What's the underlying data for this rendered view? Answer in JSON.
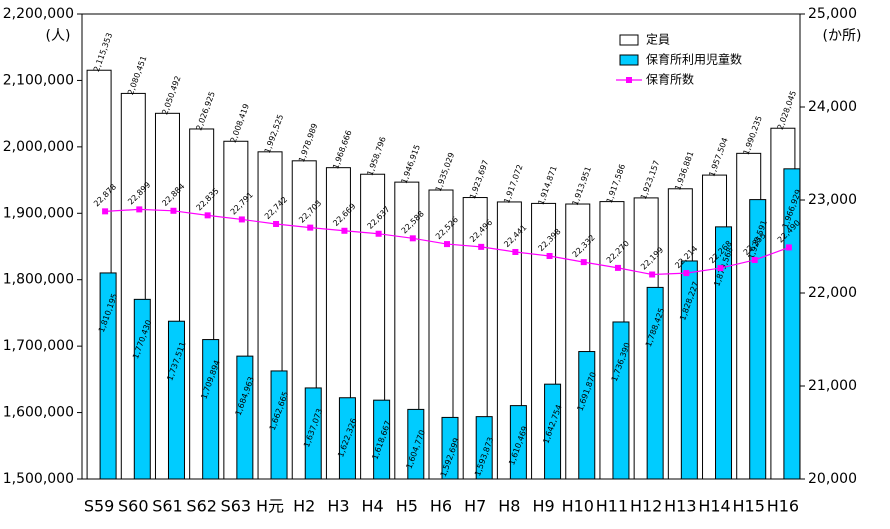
{
  "chart_data": {
    "type": "bar_line",
    "y_unit_label": "(人)",
    "y2_unit_label": "(か所)",
    "categories": [
      "S59",
      "S60",
      "S61",
      "S62",
      "S63",
      "H元",
      "H2",
      "H3",
      "H4",
      "H5",
      "H6",
      "H7",
      "H8",
      "H9",
      "H10",
      "H11",
      "H12",
      "H13",
      "H14",
      "H15",
      "H16"
    ],
    "series": [
      {
        "name": "定員",
        "kind": "bar",
        "color": "#ffffff",
        "values": [
          2115353,
          2080451,
          2050492,
          2026925,
          2008419,
          1992525,
          1978989,
          1968666,
          1958796,
          1946915,
          1935029,
          1923697,
          1917072,
          1914871,
          1913951,
          1917586,
          1923157,
          1936881,
          1957504,
          1990235,
          2028045
        ],
        "value_labels": [
          "2,115,353",
          "2,080,451",
          "2,050,492",
          "2,026,925",
          "2,008,419",
          "1,992,525",
          "1,978,989",
          "1,968,666",
          "1,958,796",
          "1,946,915",
          "1,935,029",
          "1,923,697",
          "1,917,072",
          "1,914,871",
          "1,913,951",
          "1,917,586",
          "1,923,157",
          "1,936,881",
          "1,957,504",
          "1,990,235",
          "2,028,045"
        ]
      },
      {
        "name": "保育所利用児童数",
        "kind": "bar",
        "color": "#00ccff",
        "values": [
          1810195,
          1770430,
          1737511,
          1709894,
          1684963,
          1662665,
          1637073,
          1622326,
          1618667,
          1604770,
          1592699,
          1593873,
          1610469,
          1642754,
          1691870,
          1736390,
          1788425,
          1828227,
          1879568,
          1920591,
          1966929
        ],
        "value_labels": [
          "1,810,195",
          "1,770,430",
          "1,737,511",
          "1,709,894",
          "1,684,963",
          "1,662,665",
          "1,637,073",
          "1,622,326",
          "1,618,667",
          "1,604,770",
          "1,592,699",
          "1,593,873",
          "1,610,469",
          "1,642,754",
          "1,691,870",
          "1,736,390",
          "1,788,425",
          "1,828,227",
          "1,879,568",
          "1,920,591",
          "1,966,929"
        ]
      },
      {
        "name": "保育所数",
        "kind": "line",
        "axis": "y2",
        "color": "#ff00ff",
        "values": [
          22878,
          22899,
          22884,
          22835,
          22791,
          22742,
          22703,
          22669,
          22637,
          22588,
          22526,
          22496,
          22441,
          22398,
          22332,
          22270,
          22199,
          22214,
          22268,
          22355,
          22490
        ],
        "value_labels": [
          "22,878",
          "22,899",
          "22,884",
          "22,835",
          "22,791",
          "22,742",
          "22,703",
          "22,669",
          "22,637",
          "22,588",
          "22,526",
          "22,496",
          "22,441",
          "22,398",
          "22,332",
          "22,270",
          "22,199",
          "22,214",
          "22,268",
          "22,355",
          "22,490"
        ]
      }
    ],
    "ylim": [
      1500000,
      2200000
    ],
    "yticks": [
      {
        "value": 1500000,
        "label": "1,500,000"
      },
      {
        "value": 1600000,
        "label": "1,600,000"
      },
      {
        "value": 1700000,
        "label": "1,700,000"
      },
      {
        "value": 1800000,
        "label": "1,800,000"
      },
      {
        "value": 1900000,
        "label": "1,900,000"
      },
      {
        "value": 2000000,
        "label": "2,000,000"
      },
      {
        "value": 2100000,
        "label": "2,100,000"
      },
      {
        "value": 2200000,
        "label": "2,200,000"
      }
    ],
    "y2lim": [
      20000,
      25000
    ],
    "y2ticks": [
      {
        "value": 20000,
        "label": "20,000"
      },
      {
        "value": 21000,
        "label": "21,000"
      },
      {
        "value": 22000,
        "label": "22,000"
      },
      {
        "value": 23000,
        "label": "23,000"
      },
      {
        "value": 24000,
        "label": "24,000"
      },
      {
        "value": 25000,
        "label": "25,000"
      }
    ],
    "legend": "top-right"
  }
}
